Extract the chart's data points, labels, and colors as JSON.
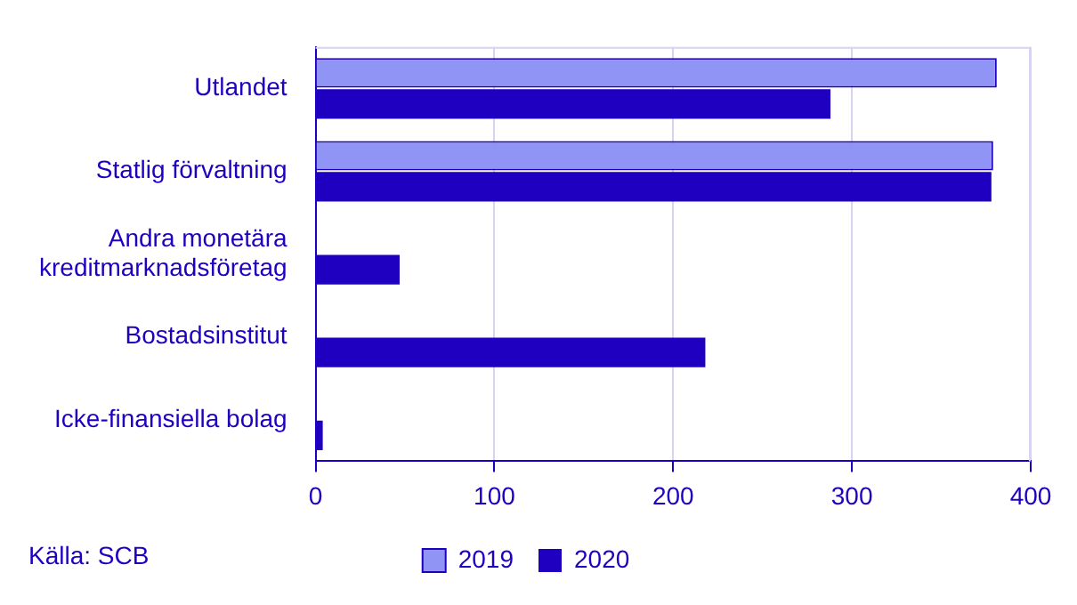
{
  "chart_data": {
    "type": "bar",
    "orientation": "horizontal",
    "categories": [
      "Utlandet",
      "Statlig förvaltning",
      "Andra monetära kreditmarknadsföretag",
      "Bostadsinstitut",
      "Icke-finansiella bolag"
    ],
    "series": [
      {
        "name": "2019",
        "color": "#8f94f5",
        "values": [
          381,
          379,
          null,
          null,
          null
        ]
      },
      {
        "name": "2020",
        "color": "#2000c0",
        "values": [
          288,
          378,
          47,
          218,
          4
        ]
      }
    ],
    "xlim": [
      0,
      400
    ],
    "xticks": [
      0,
      100,
      200,
      300,
      400
    ],
    "grid": "x",
    "legend": "bottom",
    "annotations": [
      "Källa: SCB"
    ]
  }
}
